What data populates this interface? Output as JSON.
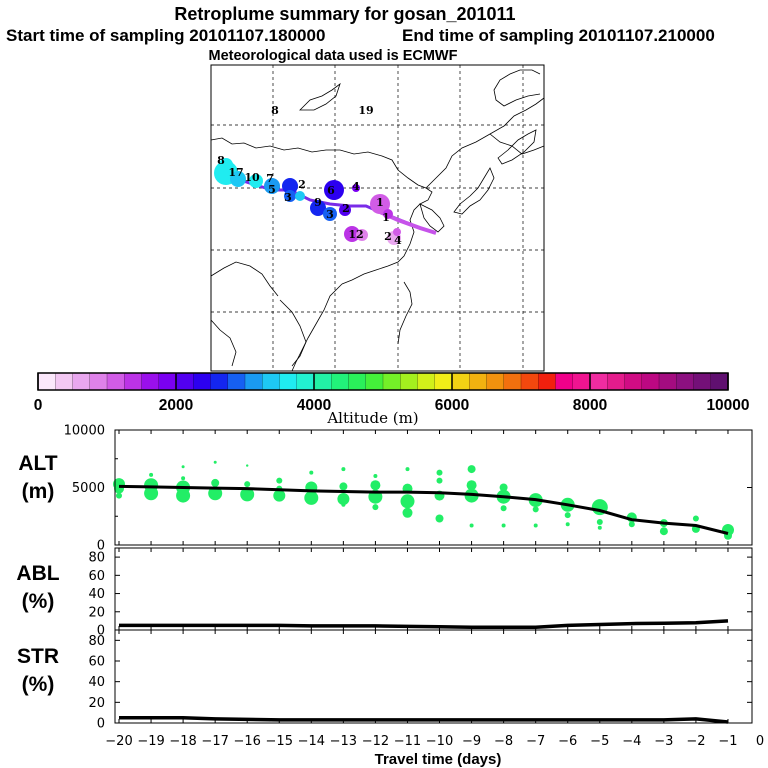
{
  "header": {
    "title": "Retroplume summary for gosan_201011",
    "start_label": "Start time of sampling 20101107.180000",
    "end_label": "End time of sampling 20101107.210000",
    "met_label": "Meteorological data used is ECMWF"
  },
  "map": {
    "day_labels": [
      {
        "text": "8",
        "color": "#000000"
      },
      {
        "text": "19",
        "color": "#000000"
      },
      {
        "text": "8",
        "color": "#000000"
      },
      {
        "text": "17",
        "color": "#000000"
      },
      {
        "text": "10",
        "color": "#000000"
      },
      {
        "text": "7",
        "color": "#000000"
      },
      {
        "text": "5",
        "color": "#000000"
      },
      {
        "text": "3",
        "color": "#000000"
      },
      {
        "text": "2",
        "color": "#000000"
      },
      {
        "text": "6",
        "color": "#000000"
      },
      {
        "text": "4",
        "color": "#000000"
      },
      {
        "text": "9",
        "color": "#000000"
      },
      {
        "text": "3",
        "color": "#000000"
      },
      {
        "text": "2",
        "color": "#000000"
      },
      {
        "text": "1",
        "color": "#000000"
      },
      {
        "text": "1",
        "color": "#000000"
      },
      {
        "text": "12",
        "color": "#000000"
      },
      {
        "text": "2",
        "color": "#000000"
      },
      {
        "text": "4",
        "color": "#000000"
      }
    ]
  },
  "colorbar": {
    "xlabel": "Altitude (m)",
    "ticks": [
      "0",
      "2000",
      "4000",
      "6000",
      "8000",
      "10000"
    ],
    "range": [
      0,
      10000
    ],
    "colors": [
      "#fbe8fb",
      "#f3c8f3",
      "#e9a7ef",
      "#df82ea",
      "#d15ce6",
      "#bb33e6",
      "#9a10ec",
      "#7a00f2",
      "#5200f0",
      "#2c00f0",
      "#1426f0",
      "#1660f2",
      "#1a9af2",
      "#1ec8f4",
      "#20ecf0",
      "#22f2d0",
      "#22f2a6",
      "#22f27a",
      "#2af05a",
      "#44f03a",
      "#74f028",
      "#a4f01e",
      "#d2f01a",
      "#f2ee18",
      "#f2d214",
      "#f2b210",
      "#f2920e",
      "#f2700e",
      "#f2480e",
      "#f2200e",
      "#f0008a",
      "#f01490",
      "#f02ca0",
      "#e41c8c",
      "#d00c84",
      "#bc0882",
      "#a40c80",
      "#8c1080",
      "#741078",
      "#601070"
    ]
  },
  "chart_data": [
    {
      "type": "scatter",
      "name": "ALT",
      "ylabel_lines": [
        "ALT",
        "(m)"
      ],
      "ylim": [
        0,
        10000
      ],
      "yticks": [
        "0",
        "5000",
        "10000"
      ],
      "xlim": [
        -20,
        -0.5
      ],
      "dot_color": "#22ee66",
      "x": [
        -20,
        -19,
        -18,
        -17,
        -16,
        -15,
        -14,
        -13,
        -12,
        -11,
        -10,
        -9,
        -8,
        -7,
        -6,
        -5,
        -4,
        -3,
        -2,
        -1
      ],
      "mean_line": [
        5100,
        5050,
        5000,
        4950,
        4900,
        4800,
        4700,
        4650,
        4600,
        4600,
        4550,
        4400,
        4200,
        3950,
        3500,
        3000,
        2200,
        1900,
        1700,
        1000
      ],
      "points": [
        {
          "x": -20,
          "y": 5300,
          "r": 6
        },
        {
          "x": -20,
          "y": 4900,
          "r": 5
        },
        {
          "x": -20,
          "y": 4300,
          "r": 3
        },
        {
          "x": -19,
          "y": 5200,
          "r": 7
        },
        {
          "x": -19,
          "y": 4500,
          "r": 7
        },
        {
          "x": -19,
          "y": 6100,
          "r": 2
        },
        {
          "x": -18,
          "y": 5000,
          "r": 7
        },
        {
          "x": -18,
          "y": 4300,
          "r": 7
        },
        {
          "x": -18,
          "y": 6800,
          "r": 1.5
        },
        {
          "x": -18,
          "y": 5800,
          "r": 2
        },
        {
          "x": -17,
          "y": 4500,
          "r": 7
        },
        {
          "x": -17,
          "y": 5400,
          "r": 4
        },
        {
          "x": -17,
          "y": 7200,
          "r": 1.5
        },
        {
          "x": -16,
          "y": 4400,
          "r": 7
        },
        {
          "x": -16,
          "y": 5300,
          "r": 3
        },
        {
          "x": -16,
          "y": 6900,
          "r": 1.2
        },
        {
          "x": -15,
          "y": 4300,
          "r": 6
        },
        {
          "x": -15,
          "y": 5600,
          "r": 3
        },
        {
          "x": -15,
          "y": 4900,
          "r": 3
        },
        {
          "x": -14,
          "y": 4100,
          "r": 7
        },
        {
          "x": -14,
          "y": 5000,
          "r": 6
        },
        {
          "x": -14,
          "y": 6300,
          "r": 2
        },
        {
          "x": -13,
          "y": 4000,
          "r": 6
        },
        {
          "x": -13,
          "y": 5100,
          "r": 4
        },
        {
          "x": -13,
          "y": 6600,
          "r": 2
        },
        {
          "x": -13,
          "y": 3500,
          "r": 2
        },
        {
          "x": -12,
          "y": 4200,
          "r": 7
        },
        {
          "x": -12,
          "y": 5200,
          "r": 5
        },
        {
          "x": -12,
          "y": 6000,
          "r": 2
        },
        {
          "x": -12,
          "y": 3300,
          "r": 3
        },
        {
          "x": -11,
          "y": 3800,
          "r": 7
        },
        {
          "x": -11,
          "y": 4900,
          "r": 5
        },
        {
          "x": -11,
          "y": 6600,
          "r": 2
        },
        {
          "x": -11,
          "y": 2800,
          "r": 5
        },
        {
          "x": -10,
          "y": 4300,
          "r": 5
        },
        {
          "x": -10,
          "y": 5600,
          "r": 3
        },
        {
          "x": -10,
          "y": 6300,
          "r": 3
        },
        {
          "x": -10,
          "y": 2300,
          "r": 4
        },
        {
          "x": -9,
          "y": 4300,
          "r": 7
        },
        {
          "x": -9,
          "y": 5200,
          "r": 5
        },
        {
          "x": -9,
          "y": 6600,
          "r": 4
        },
        {
          "x": -9,
          "y": 1700,
          "r": 2
        },
        {
          "x": -8,
          "y": 4200,
          "r": 7
        },
        {
          "x": -8,
          "y": 5000,
          "r": 4
        },
        {
          "x": -8,
          "y": 3200,
          "r": 3
        },
        {
          "x": -8,
          "y": 1700,
          "r": 2
        },
        {
          "x": -7,
          "y": 3900,
          "r": 7
        },
        {
          "x": -7,
          "y": 3100,
          "r": 3
        },
        {
          "x": -7,
          "y": 1700,
          "r": 2
        },
        {
          "x": -6,
          "y": 3500,
          "r": 7
        },
        {
          "x": -6,
          "y": 2600,
          "r": 3
        },
        {
          "x": -6,
          "y": 1800,
          "r": 2
        },
        {
          "x": -5,
          "y": 3300,
          "r": 8
        },
        {
          "x": -5,
          "y": 2000,
          "r": 3
        },
        {
          "x": -5,
          "y": 1500,
          "r": 2
        },
        {
          "x": -4,
          "y": 2400,
          "r": 5
        },
        {
          "x": -4,
          "y": 1800,
          "r": 3
        },
        {
          "x": -3,
          "y": 1900,
          "r": 4
        },
        {
          "x": -3,
          "y": 1200,
          "r": 4
        },
        {
          "x": -2,
          "y": 2300,
          "r": 3
        },
        {
          "x": -2,
          "y": 1400,
          "r": 4
        },
        {
          "x": -1,
          "y": 1300,
          "r": 6
        },
        {
          "x": -1,
          "y": 800,
          "r": 4
        }
      ]
    },
    {
      "type": "line",
      "name": "ABL",
      "ylabel_lines": [
        "ABL",
        "(%)"
      ],
      "ylim": [
        0,
        90
      ],
      "yticks": [
        "0",
        "20",
        "40",
        "60",
        "80"
      ],
      "xlim": [
        -20,
        -0.5
      ],
      "x": [
        -20,
        -19,
        -18,
        -17,
        -16,
        -15,
        -14,
        -13,
        -12,
        -11,
        -10,
        -9,
        -8,
        -7,
        -6,
        -5,
        -4,
        -3,
        -2,
        -1
      ],
      "values": [
        5,
        5,
        5,
        5,
        5,
        5,
        4.5,
        4.5,
        4.5,
        4,
        3.5,
        3,
        3,
        3,
        5,
        6,
        7,
        7.5,
        8,
        10
      ]
    },
    {
      "type": "line",
      "name": "STR",
      "ylabel_lines": [
        "STR",
        "(%)"
      ],
      "ylim": [
        0,
        90
      ],
      "yticks": [
        "0",
        "20",
        "40",
        "60",
        "80"
      ],
      "xlim": [
        -20,
        -0.5
      ],
      "x": [
        -20,
        -19,
        -18,
        -17,
        -16,
        -15,
        -14,
        -13,
        -12,
        -11,
        -10,
        -9,
        -8,
        -7,
        -6,
        -5,
        -4,
        -3,
        -2,
        -1
      ],
      "values": [
        5,
        5,
        5,
        4,
        3.5,
        3,
        3,
        3,
        3,
        3,
        3,
        3,
        3,
        3,
        3,
        3,
        3,
        3,
        4,
        1
      ]
    }
  ],
  "xaxis": {
    "label": "Travel time (days)",
    "ticks": [
      "−20",
      "−19",
      "−18",
      "−17",
      "−16",
      "−15",
      "−14",
      "−13",
      "−12",
      "−11",
      "−10",
      "−9",
      "−8",
      "−7",
      "−6",
      "−5",
      "−4",
      "−3",
      "−2",
      "−1",
      "0"
    ],
    "tick_values": [
      -20,
      -19,
      -18,
      -17,
      -16,
      -15,
      -14,
      -13,
      -12,
      -11,
      -10,
      -9,
      -8,
      -7,
      -6,
      -5,
      -4,
      -3,
      -2,
      -1,
      0
    ]
  }
}
